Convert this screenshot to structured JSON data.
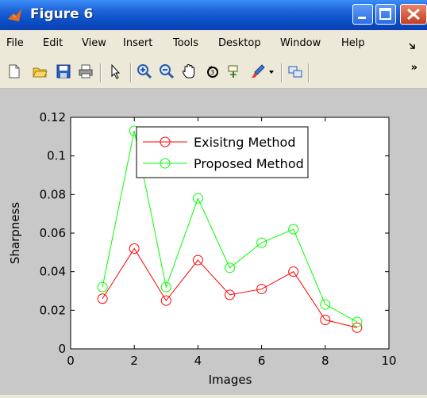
{
  "window": {
    "title": "Figure 6"
  },
  "menu": {
    "items": [
      "File",
      "Edit",
      "View",
      "Insert",
      "Tools",
      "Desktop",
      "Window",
      "Help"
    ]
  },
  "toolbar": {
    "icons": [
      "new-figure-icon",
      "open-file-icon",
      "save-icon",
      "print-icon",
      "arrow-pointer-icon",
      "zoom-in-icon",
      "zoom-out-icon",
      "pan-hand-icon",
      "rotate-3d-icon",
      "data-cursor-icon",
      "brush-icon",
      "dropdown-arrow-icon",
      "link-plot-icon"
    ],
    "overflow_label": "»"
  },
  "chart_data": {
    "type": "line",
    "title": "",
    "xlabel": "Images",
    "ylabel": "Sharpness",
    "xlim": [
      0,
      10
    ],
    "ylim": [
      0,
      0.12
    ],
    "xticks": [
      "0",
      "2",
      "4",
      "6",
      "8",
      "10"
    ],
    "yticks": [
      "0",
      "0.02",
      "0.04",
      "0.06",
      "0.08",
      "0.1",
      "0.12"
    ],
    "x": [
      1,
      2,
      3,
      4,
      5,
      6,
      7,
      8,
      9
    ],
    "series": [
      {
        "name": "Exisitng Method",
        "color": "#ff0000",
        "marker": "circle",
        "values": [
          0.026,
          0.052,
          0.025,
          0.046,
          0.028,
          0.031,
          0.04,
          0.015,
          0.011
        ]
      },
      {
        "name": "Proposed Method",
        "color": "#00ff00",
        "marker": "circle",
        "values": [
          0.032,
          0.113,
          0.032,
          0.078,
          0.042,
          0.055,
          0.062,
          0.023,
          0.014
        ]
      }
    ],
    "legend_position": "top-right",
    "grid": false
  }
}
